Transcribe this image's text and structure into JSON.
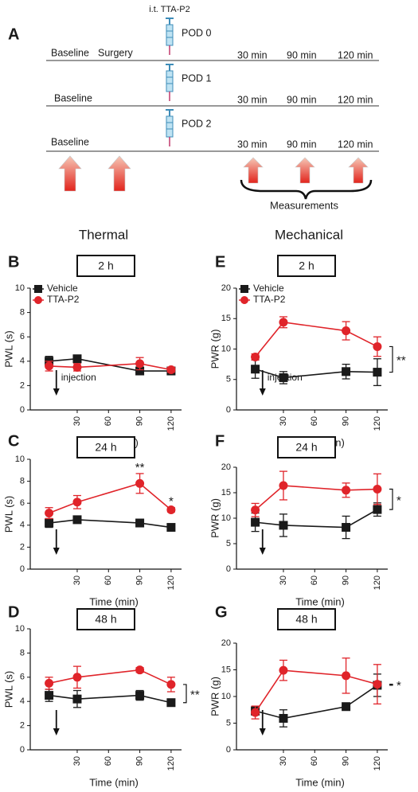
{
  "timeline": {
    "letter": "A",
    "injection_label": "i.t. TTA-P2",
    "measurements_label": "Measurements",
    "rows": [
      {
        "label": "POD 0",
        "phases": [
          "Baseline",
          "Surgery"
        ],
        "times": [
          "30 min",
          "90 min",
          "120 min"
        ]
      },
      {
        "label": "POD 1",
        "phases": [
          "Baseline"
        ],
        "times": [
          "30 min",
          "90 min",
          "120 min"
        ]
      },
      {
        "label": "POD 2",
        "phases": [
          "Baseline"
        ],
        "times": [
          "30 min",
          "90 min",
          "120 min"
        ]
      }
    ]
  },
  "columns": [
    "Thermal",
    "Mechanical"
  ],
  "chart_data": [
    {
      "type": "line",
      "panel": "B",
      "title": "2 h",
      "xlabel": "Time (min)",
      "ylabel": "PWL (s)",
      "x": [
        3,
        30,
        90,
        120
      ],
      "xlim": [
        -15,
        130
      ],
      "xticks": [
        30,
        60,
        90,
        120
      ],
      "ylim": [
        0,
        10
      ],
      "yticks": [
        0,
        2,
        4,
        6,
        8,
        10
      ],
      "injection": {
        "x": 10,
        "label": "injection"
      },
      "series": [
        {
          "name": "Vehicle",
          "color": "#1a1a1a",
          "marker": "square",
          "values": [
            4.0,
            4.2,
            3.2,
            3.2
          ],
          "errors": [
            0.4,
            0.3,
            0.3,
            0.2
          ]
        },
        {
          "name": "TTA-P2",
          "color": "#e0242a",
          "marker": "circle",
          "values": [
            3.6,
            3.5,
            3.8,
            3.3
          ],
          "errors": [
            0.4,
            0.3,
            0.5,
            0.2
          ]
        }
      ]
    },
    {
      "type": "line",
      "panel": "C",
      "title": "24 h",
      "xlabel": "Time (min)",
      "ylabel": "PWL (s)",
      "x": [
        3,
        30,
        90,
        120
      ],
      "xlim": [
        -15,
        130
      ],
      "xticks": [
        30,
        60,
        90,
        120
      ],
      "ylim": [
        0,
        10
      ],
      "yticks": [
        0,
        2,
        4,
        6,
        8,
        10
      ],
      "injection": {
        "x": 10
      },
      "significance": [
        {
          "text": "**",
          "x": 90
        },
        {
          "text": "*",
          "x": 120
        }
      ],
      "series": [
        {
          "color": "#1a1a1a",
          "marker": "square",
          "values": [
            4.2,
            4.5,
            4.2,
            3.8
          ],
          "errors": [
            0.4,
            0.3,
            0.3,
            0.3
          ]
        },
        {
          "color": "#e0242a",
          "marker": "circle",
          "values": [
            5.1,
            6.1,
            7.8,
            5.4
          ],
          "errors": [
            0.5,
            0.6,
            0.9,
            0.2
          ]
        }
      ]
    },
    {
      "type": "line",
      "panel": "D",
      "title": "48 h",
      "xlabel": "Time (min)",
      "ylabel": "PWL (s)",
      "x": [
        3,
        30,
        90,
        120
      ],
      "xlim": [
        -15,
        130
      ],
      "xticks": [
        30,
        60,
        90,
        120
      ],
      "ylim": [
        0,
        10
      ],
      "yticks": [
        0,
        2,
        4,
        6,
        8,
        10
      ],
      "injection": {
        "x": 10
      },
      "bracket": "**",
      "series": [
        {
          "color": "#1a1a1a",
          "marker": "square",
          "values": [
            4.5,
            4.2,
            4.5,
            3.9
          ],
          "errors": [
            0.5,
            0.7,
            0.4,
            0.3
          ]
        },
        {
          "color": "#e0242a",
          "marker": "circle",
          "values": [
            5.5,
            6.0,
            6.6,
            5.4
          ],
          "errors": [
            0.5,
            0.9,
            0.2,
            0.6
          ]
        }
      ]
    },
    {
      "type": "line",
      "panel": "E",
      "title": "2 h",
      "xlabel": "Time (min)",
      "ylabel": "PWR (g)",
      "x": [
        3,
        30,
        90,
        120
      ],
      "xlim": [
        -15,
        130
      ],
      "xticks": [
        30,
        60,
        90,
        120
      ],
      "ylim": [
        0,
        20
      ],
      "yticks": [
        0,
        5,
        10,
        15,
        20
      ],
      "injection": {
        "x": 10,
        "label": "injection"
      },
      "bracket": "**",
      "series": [
        {
          "name": "Vehicle",
          "color": "#1a1a1a",
          "marker": "square",
          "values": [
            6.7,
            5.3,
            6.3,
            6.2
          ],
          "errors": [
            1.5,
            1.0,
            1.2,
            2.2
          ]
        },
        {
          "name": "TTA-P2",
          "color": "#e0242a",
          "marker": "circle",
          "values": [
            8.7,
            14.4,
            13.0,
            10.4
          ],
          "errors": [
            0.5,
            0.9,
            1.5,
            1.6
          ]
        }
      ]
    },
    {
      "type": "line",
      "panel": "F",
      "title": "24 h",
      "xlabel": "Time (min)",
      "ylabel": "PWR (g)",
      "x": [
        3,
        30,
        90,
        120
      ],
      "xlim": [
        -15,
        130
      ],
      "xticks": [
        30,
        60,
        90,
        120
      ],
      "ylim": [
        0,
        20
      ],
      "yticks": [
        0,
        5,
        10,
        15,
        20
      ],
      "injection": {
        "x": 10
      },
      "bracket": "*",
      "series": [
        {
          "color": "#1a1a1a",
          "marker": "square",
          "values": [
            9.2,
            8.6,
            8.2,
            11.7
          ],
          "errors": [
            1.8,
            2.2,
            2.2,
            1.3
          ]
        },
        {
          "color": "#e0242a",
          "marker": "circle",
          "values": [
            11.6,
            16.4,
            15.5,
            15.7
          ],
          "errors": [
            1.3,
            2.8,
            1.4,
            3.0
          ]
        }
      ]
    },
    {
      "type": "line",
      "panel": "G",
      "title": "48 h",
      "xlabel": "Time (min)",
      "ylabel": "PWR (g)",
      "x": [
        3,
        30,
        90,
        120
      ],
      "xlim": [
        -15,
        130
      ],
      "xticks": [
        30,
        60,
        90,
        120
      ],
      "ylim": [
        0,
        20
      ],
      "yticks": [
        0,
        5,
        10,
        15,
        20
      ],
      "injection": {
        "x": 10
      },
      "bracket": "*",
      "series": [
        {
          "color": "#1a1a1a",
          "marker": "square",
          "values": [
            7.3,
            5.9,
            8.1,
            12.1
          ],
          "errors": [
            0.8,
            1.6,
            0.5,
            2.1
          ]
        },
        {
          "color": "#e0242a",
          "marker": "circle",
          "values": [
            7.0,
            14.9,
            13.9,
            12.3
          ],
          "errors": [
            1.2,
            1.9,
            3.3,
            3.7
          ]
        }
      ]
    }
  ]
}
